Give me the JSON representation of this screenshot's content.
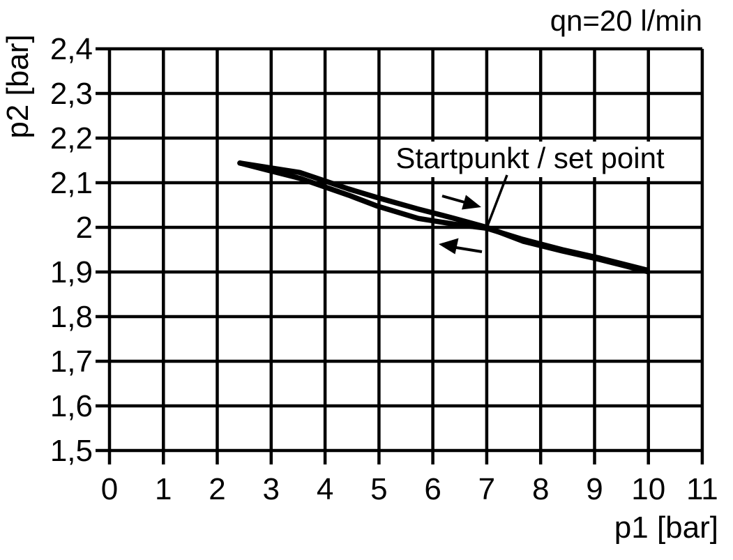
{
  "title": "qn=20 l/min",
  "axes": {
    "x": {
      "label": "p1 [bar]",
      "range": [
        0,
        11
      ],
      "tick_labels": [
        "0",
        "1",
        "2",
        "3",
        "4",
        "5",
        "6",
        "7",
        "8",
        "9",
        "10",
        "11"
      ]
    },
    "y": {
      "label": "p2 [bar]",
      "range": [
        1.5,
        2.4
      ],
      "tick_labels": [
        "2,4",
        "2,3",
        "2,2",
        "2,1",
        "2",
        "1,9",
        "1,8",
        "1,7",
        "1,6",
        "1,5"
      ]
    }
  },
  "annotation": {
    "label": "Startpunkt / set point",
    "points_to": {
      "p1": 7,
      "p2": 2.0
    },
    "arrows": [
      {
        "direction": "right",
        "meaning": "traverse toward increasing p1"
      },
      {
        "direction": "left",
        "meaning": "traverse toward decreasing p1"
      }
    ]
  },
  "colors": {
    "ink": "#000000",
    "background": "#ffffff"
  },
  "chart_data": {
    "type": "line",
    "title": "qn=20 l/min",
    "xlabel": "p1 [bar]",
    "ylabel": "p2 [bar]",
    "xlim": [
      0,
      11
    ],
    "ylim": [
      1.5,
      2.4
    ],
    "grid": true,
    "legend": false,
    "set_point": {
      "x": 7,
      "y": 2.0
    },
    "series": [
      {
        "name": "upper-branch",
        "x": [
          2.42,
          3.53,
          4.44,
          4.96,
          5.73,
          6.4,
          7.0,
          7.67,
          8.4,
          9.1,
          9.98
        ],
        "y": [
          2.144,
          2.123,
          2.086,
          2.067,
          2.041,
          2.02,
          2.0,
          1.969,
          1.947,
          1.928,
          1.901
        ]
      },
      {
        "name": "lower-branch",
        "x": [
          2.42,
          3.53,
          4.44,
          4.96,
          5.73,
          6.4,
          7.0,
          7.67,
          8.4,
          9.1,
          9.98
        ],
        "y": [
          2.144,
          2.11,
          2.072,
          2.048,
          2.02,
          2.007,
          1.998,
          1.973,
          1.95,
          1.931,
          1.904
        ]
      }
    ]
  }
}
